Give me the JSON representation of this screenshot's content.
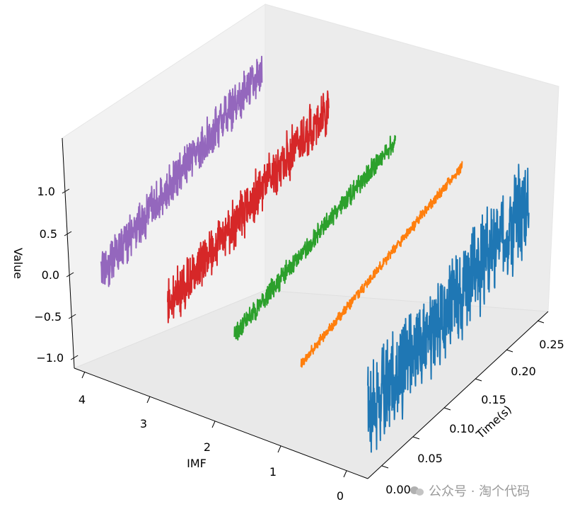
{
  "chart_data": {
    "type": "line3d",
    "x_axis": {
      "label": "Time(s)",
      "ticks": [
        0.0,
        0.05,
        0.1,
        0.15,
        0.2,
        0.25
      ],
      "tick_labels": [
        "0.00",
        "0.05",
        "0.10",
        "0.15",
        "0.20",
        "0.25"
      ],
      "range": [
        0,
        0.28
      ]
    },
    "y_axis": {
      "label": "IMF",
      "ticks": [
        0,
        1,
        2,
        3,
        4
      ],
      "tick_labels": [
        "0",
        "1",
        "2",
        "3",
        "4"
      ]
    },
    "z_axis": {
      "label": "Value",
      "ticks": [
        -1.0,
        -0.5,
        0.0,
        0.5,
        1.0
      ],
      "tick_labels": [
        "−1.0",
        "−0.5",
        "0.0",
        "0.5",
        "1.0"
      ]
    },
    "series": [
      {
        "imf": 0,
        "color": "#1f77b4",
        "trend_start": -0.35,
        "trend_end": 0.45,
        "amplitude": 0.55
      },
      {
        "imf": 1,
        "color": "#ff7f0e",
        "trend_start": -0.05,
        "trend_end": 0.55,
        "amplitude": 0.06
      },
      {
        "imf": 2,
        "color": "#2ca02c",
        "trend_start": 0.0,
        "trend_end": 0.55,
        "amplitude": 0.12
      },
      {
        "imf": 3,
        "color": "#d62728",
        "trend_start": 0.05,
        "trend_end": 0.65,
        "amplitude": 0.28
      },
      {
        "imf": 4,
        "color": "#9467bd",
        "trend_start": 0.15,
        "trend_end": 0.8,
        "amplitude": 0.25
      }
    ],
    "grid": false,
    "background": "#ffffff",
    "pane_color": "#f2f2f2"
  },
  "watermark": {
    "text": "公众号 · 淘个代码"
  }
}
